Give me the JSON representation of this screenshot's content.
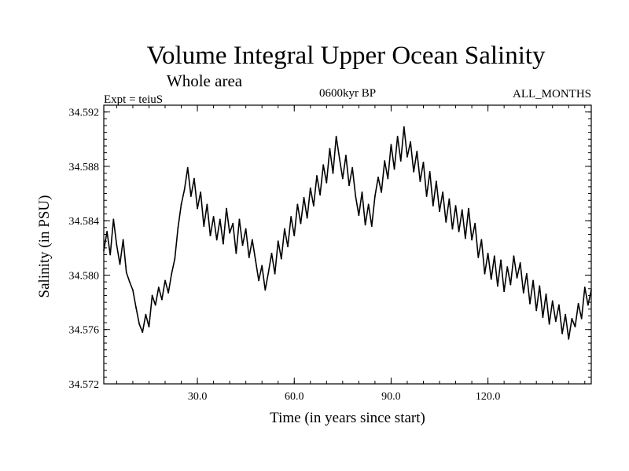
{
  "colors": {
    "background": "#ffffff",
    "line": "#000000",
    "text": "#000000"
  },
  "chart_data": {
    "type": "line",
    "title": "Volume Integral Upper Ocean Salinity",
    "subtitle": "Whole area",
    "experiment": "Expt = teiuS",
    "period": "0600kyr BP",
    "months": "ALL_MONTHS",
    "xlabel": "Time (in years since start)",
    "ylabel": "Salinity (in PSU)",
    "xlim": [
      1,
      152
    ],
    "ylim": [
      34.572,
      34.5925
    ],
    "xticks": [
      30,
      60,
      90,
      120
    ],
    "xtick_labels": [
      "30.0",
      "60.0",
      "90.0",
      "120.0"
    ],
    "yticks": [
      34.572,
      34.576,
      34.58,
      34.584,
      34.588,
      34.592
    ],
    "ytick_labels": [
      "34.572",
      "34.576",
      "34.580",
      "34.584",
      "34.588",
      "34.592"
    ],
    "series": [
      {
        "name": "Salinity",
        "x": [
          1,
          2,
          3,
          4,
          5,
          6,
          7,
          8,
          9,
          10,
          11,
          12,
          13,
          14,
          15,
          16,
          17,
          18,
          19,
          20,
          21,
          22,
          23,
          24,
          25,
          26,
          27,
          28,
          29,
          30,
          31,
          32,
          33,
          34,
          35,
          36,
          37,
          38,
          39,
          40,
          41,
          42,
          43,
          44,
          45,
          46,
          47,
          48,
          49,
          50,
          51,
          52,
          53,
          54,
          55,
          56,
          57,
          58,
          59,
          60,
          61,
          62,
          63,
          64,
          65,
          66,
          67,
          68,
          69,
          70,
          71,
          72,
          73,
          74,
          75,
          76,
          77,
          78,
          79,
          80,
          81,
          82,
          83,
          84,
          85,
          86,
          87,
          88,
          89,
          90,
          91,
          92,
          93,
          94,
          95,
          96,
          97,
          98,
          99,
          100,
          101,
          102,
          103,
          104,
          105,
          106,
          107,
          108,
          109,
          110,
          111,
          112,
          113,
          114,
          115,
          116,
          117,
          118,
          119,
          120,
          121,
          122,
          123,
          124,
          125,
          126,
          127,
          128,
          129,
          130,
          131,
          132,
          133,
          134,
          135,
          136,
          137,
          138,
          139,
          140,
          141,
          142,
          143,
          144,
          145,
          146,
          147,
          148,
          149,
          150,
          151,
          152
        ],
        "values": [
          34.5818,
          34.5832,
          34.5815,
          34.5841,
          34.5822,
          34.5808,
          34.5826,
          34.5802,
          34.5795,
          34.5789,
          34.5776,
          34.5764,
          34.5758,
          34.5771,
          34.5762,
          34.5785,
          34.5778,
          34.5791,
          34.5782,
          34.5796,
          34.5787,
          34.5801,
          34.5812,
          34.5835,
          34.5852,
          34.5863,
          34.5879,
          34.5858,
          34.5871,
          34.5849,
          34.5861,
          34.5836,
          34.5852,
          34.5829,
          34.5843,
          34.5826,
          34.5841,
          34.5823,
          34.5849,
          34.5831,
          34.5838,
          34.5816,
          34.5841,
          34.5822,
          34.5834,
          34.5813,
          34.5826,
          34.5811,
          34.5796,
          34.5807,
          34.5789,
          34.5802,
          34.5816,
          34.5801,
          34.5825,
          34.5812,
          34.5834,
          34.5821,
          34.5843,
          34.5829,
          34.5852,
          34.5838,
          34.5857,
          34.5842,
          34.5864,
          34.5851,
          34.5873,
          34.5859,
          34.5881,
          34.5868,
          34.5893,
          34.5875,
          34.5902,
          34.5886,
          34.5871,
          34.5888,
          34.5866,
          34.5879,
          34.5858,
          34.5844,
          34.5861,
          34.5837,
          34.5852,
          34.5836,
          34.5858,
          34.5872,
          34.5861,
          34.5884,
          34.5871,
          34.5896,
          34.5878,
          34.5902,
          34.5884,
          34.5909,
          34.5887,
          34.5898,
          34.5876,
          34.5891,
          34.5869,
          34.5883,
          34.5858,
          34.5876,
          34.5851,
          34.5869,
          34.5847,
          34.5861,
          34.5839,
          34.5856,
          34.5834,
          34.5851,
          34.5832,
          34.5848,
          34.5827,
          34.5849,
          34.5826,
          34.5838,
          34.5813,
          34.5826,
          34.5801,
          34.5816,
          34.5797,
          34.5814,
          34.5792,
          34.5811,
          34.5788,
          34.5806,
          34.5793,
          34.5814,
          34.5798,
          34.5809,
          34.5787,
          34.5801,
          34.5779,
          34.5796,
          34.5774,
          34.5792,
          34.5769,
          34.5786,
          34.5764,
          34.5781,
          34.5766,
          34.5778,
          34.5757,
          34.5771,
          34.5753,
          34.5768,
          34.5762,
          34.5779,
          34.5768,
          34.5791,
          34.5778,
          34.5789
        ]
      }
    ]
  }
}
